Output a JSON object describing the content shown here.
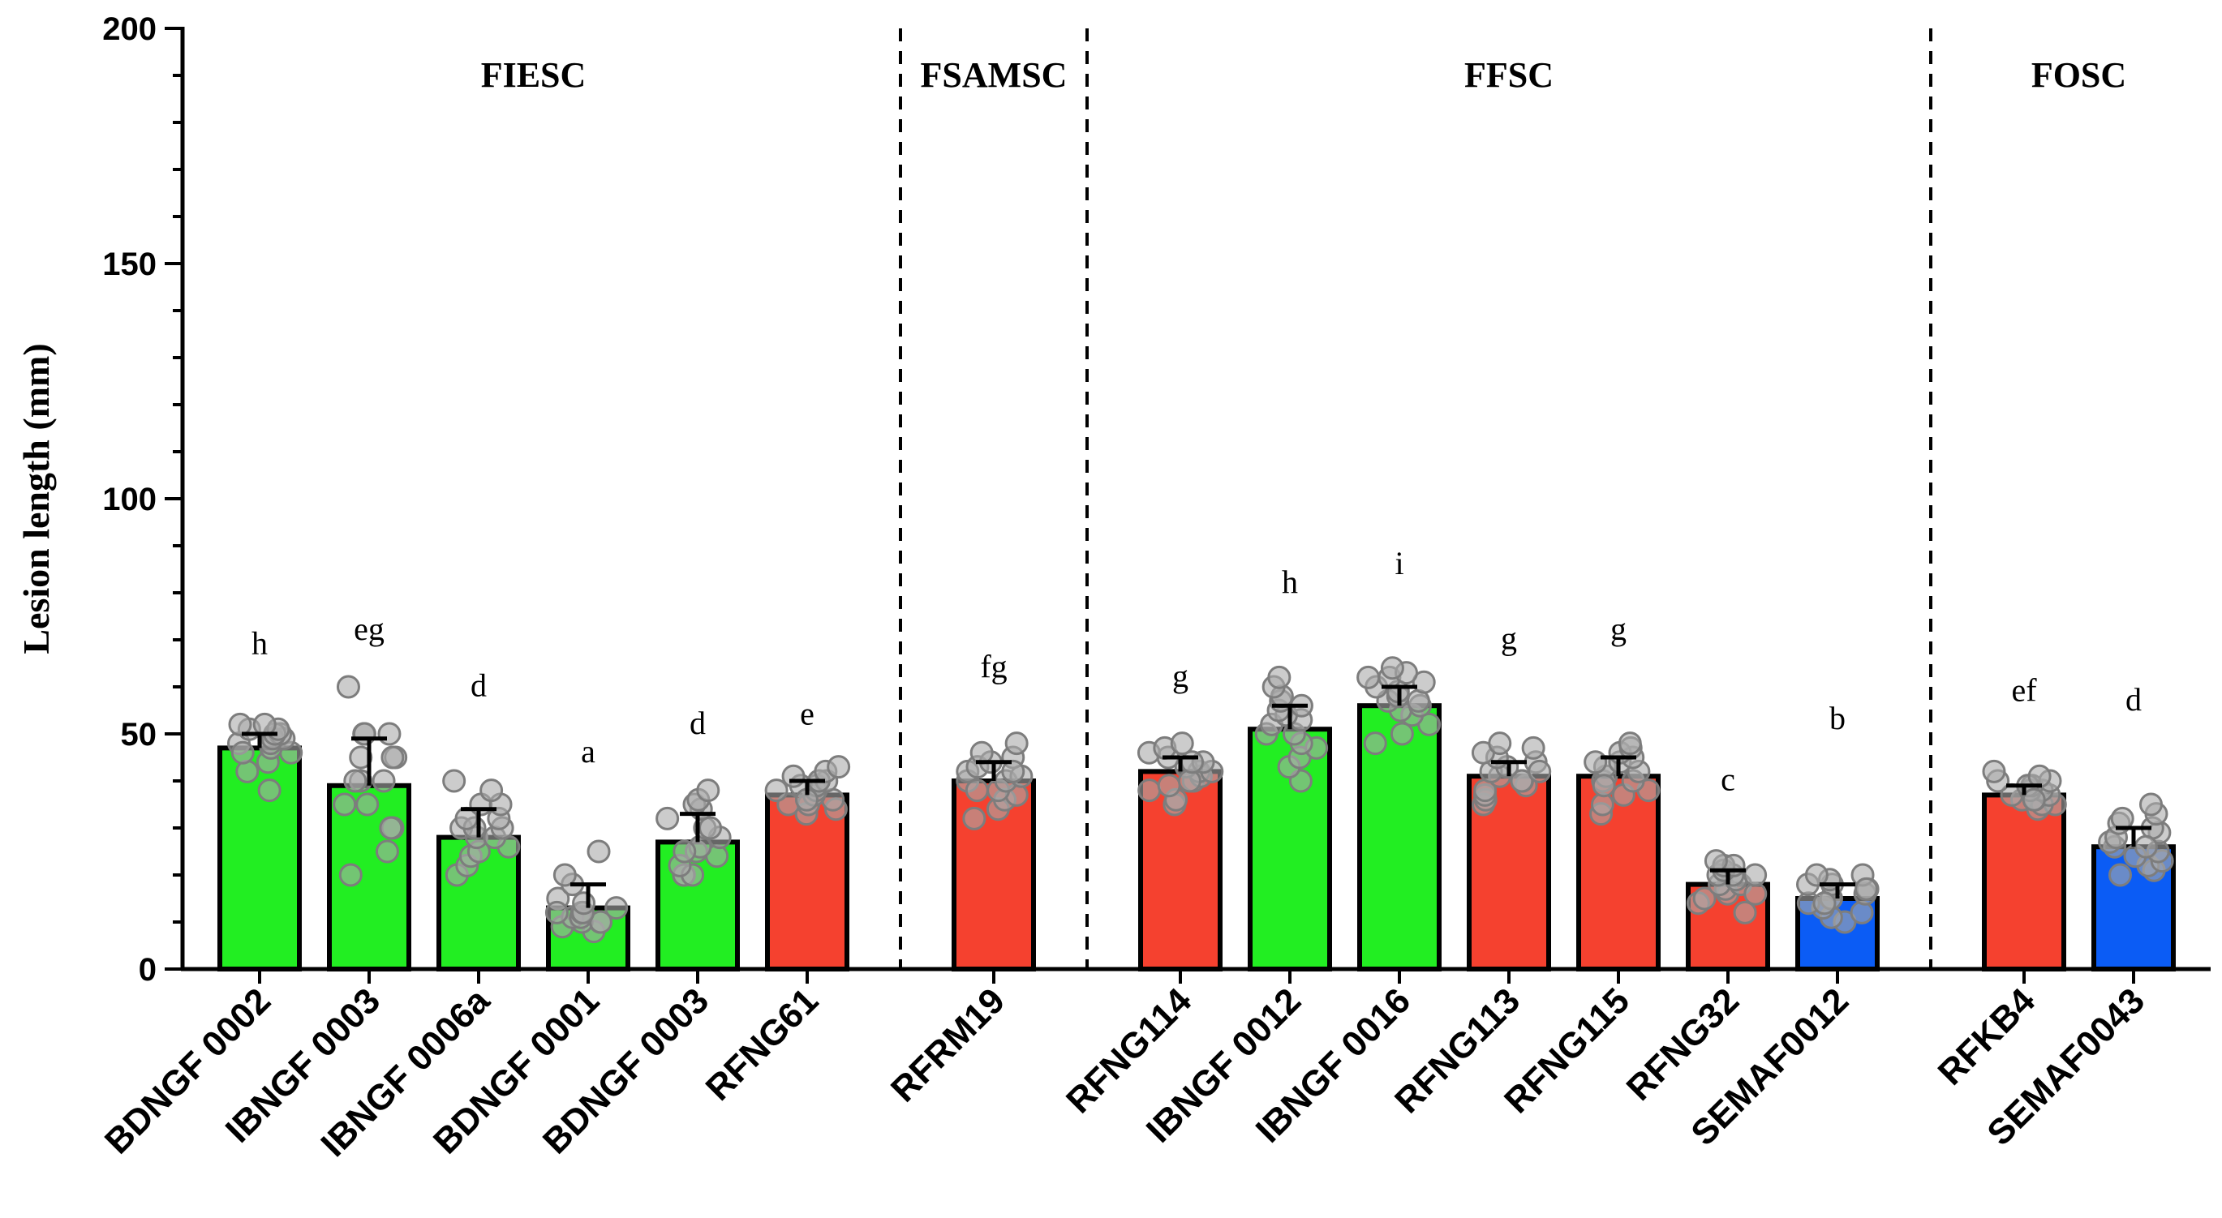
{
  "chart_data": {
    "type": "bar",
    "title": "",
    "xlabel": "",
    "ylabel": "Lesion length (mm)",
    "ylim": [
      0,
      200
    ],
    "yticks": [
      0,
      50,
      100,
      150,
      200
    ],
    "grid": false,
    "colors": {
      "green": "#22ee22",
      "red": "#f5412f",
      "blue": "#0b5cf5"
    },
    "groups": [
      {
        "label": "FIESC",
        "start": 0,
        "end": 5
      },
      {
        "label": "FSAMSC",
        "start": 6,
        "end": 6
      },
      {
        "label": "FFSC",
        "start": 7,
        "end": 13
      },
      {
        "label": "FOSC",
        "start": 14,
        "end": 15
      }
    ],
    "categories": [
      "BDNGF 0002",
      "IBNGF 0003",
      "IBNGF 0006a",
      "BDNGF 0001",
      "BDNGF 0003",
      "RFNG61",
      "RFRM19",
      "RFNG114",
      "IBNGF 0012",
      "IBNGF 0016",
      "RFNG113",
      "RFNG115",
      "RFNG32",
      "SEMAF0012",
      "RFKB4",
      "SEMAF0043"
    ],
    "values": [
      47,
      39,
      28,
      13,
      27,
      37,
      40,
      42,
      51,
      56,
      41,
      41,
      18,
      15,
      37,
      26
    ],
    "errors": [
      3,
      10,
      6,
      5,
      6,
      3,
      4,
      3,
      5,
      4,
      3,
      4,
      3,
      3,
      2,
      4
    ],
    "bar_colors": [
      "green",
      "green",
      "green",
      "green",
      "green",
      "red",
      "red",
      "red",
      "green",
      "green",
      "red",
      "red",
      "red",
      "blue",
      "red",
      "blue"
    ],
    "letters": [
      "h",
      "eg",
      "d",
      "a",
      "d",
      "e",
      "fg",
      "g",
      "h",
      "i",
      "g",
      "g",
      "c",
      "b",
      "ef",
      "d"
    ],
    "letter_heights": [
      67,
      70,
      58,
      44,
      50,
      52,
      62,
      60,
      80,
      84,
      68,
      70,
      38,
      51,
      57,
      55
    ],
    "points": [
      [
        38,
        42,
        44,
        46,
        47,
        48,
        48,
        49,
        49,
        50,
        50,
        51,
        51,
        52,
        52,
        46
      ],
      [
        20,
        25,
        30,
        30,
        35,
        35,
        40,
        40,
        40,
        45,
        45,
        45,
        50,
        50,
        50,
        60
      ],
      [
        20,
        22,
        24,
        25,
        26,
        28,
        28,
        30,
        30,
        30,
        32,
        32,
        35,
        35,
        38,
        40
      ],
      [
        8,
        9,
        10,
        10,
        10,
        11,
        11,
        12,
        12,
        13,
        14,
        15,
        18,
        20,
        25,
        12
      ],
      [
        20,
        20,
        20,
        22,
        24,
        25,
        26,
        28,
        30,
        30,
        32,
        34,
        35,
        36,
        38,
        25
      ],
      [
        33,
        34,
        35,
        35,
        36,
        37,
        38,
        38,
        39,
        39,
        40,
        40,
        41,
        42,
        43,
        36
      ],
      [
        32,
        34,
        36,
        37,
        38,
        40,
        40,
        41,
        42,
        43,
        44,
        45,
        46,
        48,
        38,
        42
      ],
      [
        35,
        36,
        38,
        39,
        40,
        41,
        42,
        42,
        43,
        44,
        45,
        46,
        47,
        48,
        40,
        44
      ],
      [
        40,
        43,
        45,
        47,
        48,
        50,
        50,
        52,
        53,
        54,
        55,
        56,
        57,
        58,
        60,
        62
      ],
      [
        48,
        50,
        52,
        54,
        55,
        56,
        57,
        57,
        58,
        59,
        60,
        61,
        62,
        62,
        63,
        64
      ],
      [
        35,
        36,
        37,
        38,
        39,
        40,
        40,
        41,
        42,
        43,
        44,
        45,
        46,
        47,
        48,
        42
      ],
      [
        33,
        35,
        37,
        38,
        40,
        40,
        41,
        42,
        43,
        44,
        45,
        46,
        47,
        48,
        39,
        44
      ],
      [
        12,
        14,
        15,
        16,
        17,
        18,
        18,
        19,
        20,
        20,
        21,
        22,
        22,
        23,
        16,
        20
      ],
      [
        10,
        11,
        12,
        13,
        14,
        15,
        15,
        16,
        17,
        18,
        18,
        19,
        20,
        20,
        14,
        17
      ],
      [
        34,
        35,
        35,
        36,
        36,
        37,
        37,
        38,
        38,
        39,
        39,
        40,
        40,
        41,
        42,
        36
      ],
      [
        20,
        21,
        22,
        23,
        24,
        25,
        26,
        27,
        28,
        29,
        30,
        31,
        32,
        33,
        35,
        26
      ]
    ]
  }
}
